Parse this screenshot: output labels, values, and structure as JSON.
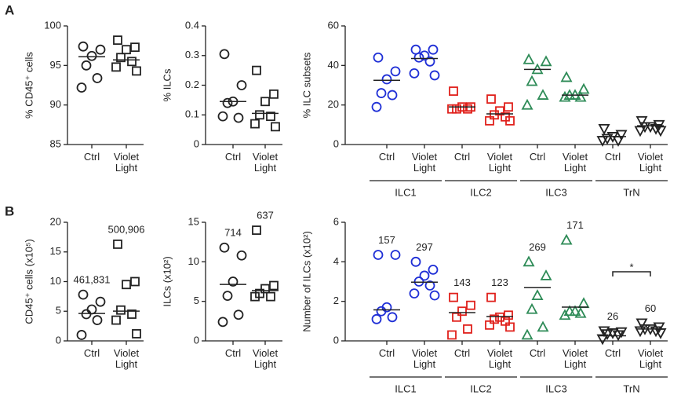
{
  "panel_labels": [
    "A",
    "B"
  ],
  "chart_data": [
    {
      "type": "dot",
      "ylabel": "% CD45⁺ cells",
      "ylim": [
        85,
        100
      ],
      "yticks": [
        85,
        90,
        95,
        100
      ],
      "groups": [
        {
          "color": "#222222",
          "categories": [
            "Ctrl",
            "Violet Light"
          ],
          "markers": [
            "circle",
            "square"
          ],
          "values": [
            [
              97.4,
              97.0,
              96.2,
              95.0,
              93.4,
              92.2
            ],
            [
              98.2,
              97.3,
              97.0,
              96.0,
              95.5,
              94.8,
              94.3
            ]
          ],
          "lines": [
            96.1,
            95.7
          ]
        }
      ]
    },
    {
      "type": "dot",
      "ylabel": "% ILCs",
      "ylim": [
        0,
        0.4
      ],
      "yticks": [
        0,
        0.1,
        0.2,
        0.3,
        0.4
      ],
      "groups": [
        {
          "color": "#222222",
          "categories": [
            "Ctrl",
            "Violet Light"
          ],
          "markers": [
            "circle",
            "square"
          ],
          "values": [
            [
              0.305,
              0.2,
              0.145,
              0.14,
              0.09,
              0.095
            ],
            [
              0.25,
              0.17,
              0.145,
              0.1,
              0.095,
              0.07,
              0.06
            ]
          ],
          "lines": [
            0.145,
            0.105
          ]
        }
      ]
    },
    {
      "type": "dot",
      "ylabel": "% ILC subsets",
      "ylim": [
        0,
        60
      ],
      "yticks": [
        0,
        20,
        40,
        60
      ],
      "groups": [
        {
          "name": "ILC1",
          "color": "#1f2fd6",
          "categories": [
            "Ctrl",
            "Violet Light"
          ],
          "markers": [
            "circle",
            "circle"
          ],
          "values": [
            [
              44,
              37,
              33,
              26,
              25,
              19
            ],
            [
              48,
              48,
              45,
              44,
              42,
              36,
              35
            ]
          ],
          "lines": [
            32.5,
            43.5
          ]
        },
        {
          "name": "ILC2",
          "color": "#e0201b",
          "categories": [
            "Ctrl",
            "Violet Light"
          ],
          "markers": [
            "square",
            "square"
          ],
          "values": [
            [
              27,
              19,
              19,
              18,
              18,
              18
            ],
            [
              23,
              19,
              17,
              15,
              14,
              12,
              12
            ]
          ],
          "lines": [
            19,
            15.5
          ]
        },
        {
          "name": "ILC3",
          "color": "#2e8b57",
          "categories": [
            "Ctrl",
            "Violet Light"
          ],
          "markers": [
            "triangle",
            "triangle"
          ],
          "values": [
            [
              43,
              42,
              38,
              32,
              25,
              20
            ],
            [
              34,
              28,
              25,
              25,
              24,
              24
            ]
          ],
          "lines": [
            38,
            25
          ]
        },
        {
          "name": "TrN",
          "color": "#222222",
          "categories": [
            "Ctrl",
            "Violet Light"
          ],
          "markers": [
            "triangle-down",
            "triangle-down"
          ],
          "values": [
            [
              8,
              5,
              4,
              3,
              2,
              2
            ],
            [
              12,
              10,
              9,
              9,
              8,
              7,
              7
            ]
          ],
          "lines": [
            4,
            9.5
          ]
        }
      ]
    },
    {
      "type": "dot",
      "ylabel": "CD45⁺ cells (x10⁵)",
      "ylim": [
        0,
        20
      ],
      "yticks": [
        0,
        5,
        10,
        15,
        20
      ],
      "groups": [
        {
          "color": "#222222",
          "categories": [
            "Ctrl",
            "Violet Light"
          ],
          "markers": [
            "circle",
            "square"
          ],
          "values": [
            [
              7.8,
              6.6,
              5.3,
              4.5,
              3.5,
              1.0
            ],
            [
              16.3,
              10,
              9.5,
              5.2,
              4.5,
              3.5,
              1.2
            ]
          ],
          "lines": [
            4.61831,
            5.00906
          ],
          "value_labels": [
            "461,831",
            "500,906"
          ]
        }
      ]
    },
    {
      "type": "dot",
      "ylabel": "ILCs (x10²)",
      "ylim": [
        0,
        15
      ],
      "yticks": [
        0,
        5,
        10,
        15
      ],
      "groups": [
        {
          "color": "#222222",
          "categories": [
            "Ctrl",
            "Violet Light"
          ],
          "markers": [
            "circle",
            "square"
          ],
          "values": [
            [
              11.8,
              10.8,
              7.5,
              5.7,
              3.3,
              2.4
            ],
            [
              14,
              7,
              6.6,
              6.0,
              5.6,
              5.6
            ]
          ],
          "lines": [
            7.14,
            6.37
          ],
          "value_labels": [
            "714",
            "637"
          ]
        }
      ]
    },
    {
      "type": "dot",
      "ylabel": "Number of ILCs (x10²)",
      "ylim": [
        0,
        6
      ],
      "yticks": [
        0,
        2,
        4,
        6
      ],
      "groups": [
        {
          "name": "ILC1",
          "color": "#1f2fd6",
          "categories": [
            "Ctrl",
            "Violet Light"
          ],
          "markers": [
            "circle",
            "circle"
          ],
          "values": [
            [
              4.35,
              4.35,
              1.7,
              1.5,
              1.2,
              1.1
            ],
            [
              4.0,
              3.6,
              3.3,
              3.0,
              2.8,
              2.4,
              2.3
            ]
          ],
          "lines": [
            1.57,
            2.97
          ],
          "value_labels": [
            "157",
            "297"
          ]
        },
        {
          "name": "ILC2",
          "color": "#e0201b",
          "categories": [
            "Ctrl",
            "Violet Light"
          ],
          "markers": [
            "square",
            "square"
          ],
          "values": [
            [
              2.2,
              1.8,
              1.5,
              1.2,
              0.6,
              0.3
            ],
            [
              2.2,
              1.3,
              1.2,
              1.1,
              1.0,
              0.8,
              0.7
            ]
          ],
          "lines": [
            1.43,
            1.23
          ],
          "value_labels": [
            "143",
            "123"
          ]
        },
        {
          "name": "ILC3",
          "color": "#2e8b57",
          "categories": [
            "Ctrl",
            "Violet Light"
          ],
          "markers": [
            "triangle",
            "triangle"
          ],
          "values": [
            [
              4.0,
              3.3,
              2.3,
              1.6,
              0.7,
              0.3
            ],
            [
              5.1,
              1.9,
              1.5,
              1.5,
              1.4,
              1.3
            ]
          ],
          "lines": [
            2.69,
            1.71
          ],
          "value_labels": [
            "269",
            "171"
          ]
        },
        {
          "name": "TrN",
          "color": "#222222",
          "categories": [
            "Ctrl",
            "Violet Light"
          ],
          "markers": [
            "triangle-down",
            "triangle-down"
          ],
          "values": [
            [
              0.5,
              0.45,
              0.4,
              0.35,
              0.3,
              0.1
            ],
            [
              0.9,
              0.7,
              0.6,
              0.6,
              0.5,
              0.5,
              0.4
            ]
          ],
          "lines": [
            0.26,
            0.6
          ],
          "value_labels": [
            "26",
            "60"
          ],
          "significance": "*"
        }
      ]
    }
  ]
}
